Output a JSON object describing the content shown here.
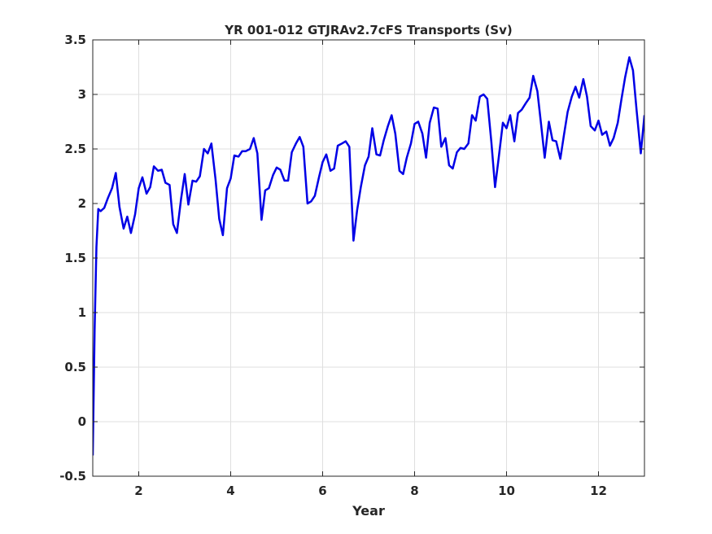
{
  "chart_data": {
    "type": "line",
    "title": "YR 001-012 GTJRAv2.7cFS Transports (Sv)",
    "xlabel": "Year",
    "ylabel": "",
    "xlim": [
      1.0,
      13.0
    ],
    "ylim": [
      -0.5,
      3.5
    ],
    "xticks": [
      2,
      4,
      6,
      8,
      10,
      12
    ],
    "xtick_labels": [
      "2",
      "4",
      "6",
      "8",
      "10",
      "12"
    ],
    "yticks": [
      -0.5,
      0,
      0.5,
      1,
      1.5,
      2,
      2.5,
      3,
      3.5
    ],
    "ytick_labels": [
      "-0.5",
      "0",
      "0.5",
      "1",
      "1.5",
      "2",
      "2.5",
      "3",
      "3.5"
    ],
    "grid": true,
    "line_color": "#0000e6",
    "series": [
      {
        "x": [
          1.0,
          1.04,
          1.08,
          1.12,
          1.17,
          1.25,
          1.33,
          1.42,
          1.5,
          1.58,
          1.67,
          1.75,
          1.83,
          1.92,
          2.0,
          2.08,
          2.17,
          2.25,
          2.33,
          2.42,
          2.5,
          2.58,
          2.67,
          2.75,
          2.83,
          2.92,
          3.0,
          3.08,
          3.17,
          3.25,
          3.33,
          3.42,
          3.5,
          3.58,
          3.67,
          3.75,
          3.83,
          3.92,
          4.0,
          4.08,
          4.17,
          4.25,
          4.33,
          4.42,
          4.5,
          4.58,
          4.67,
          4.75,
          4.83,
          4.92,
          5.0,
          5.08,
          5.17,
          5.25,
          5.33,
          5.42,
          5.5,
          5.58,
          5.67,
          5.75,
          5.83,
          5.92,
          6.0,
          6.08,
          6.17,
          6.25,
          6.33,
          6.42,
          6.5,
          6.58,
          6.67,
          6.75,
          6.83,
          6.92,
          7.0,
          7.08,
          7.17,
          7.25,
          7.33,
          7.42,
          7.5,
          7.58,
          7.67,
          7.75,
          7.83,
          7.92,
          8.0,
          8.08,
          8.17,
          8.25,
          8.33,
          8.42,
          8.5,
          8.58,
          8.67,
          8.75,
          8.83,
          8.92,
          9.0,
          9.08,
          9.17,
          9.25,
          9.33,
          9.42,
          9.5,
          9.58,
          9.67,
          9.75,
          9.83,
          9.92,
          10.0,
          10.08,
          10.17,
          10.25,
          10.33,
          10.42,
          10.5,
          10.58,
          10.67,
          10.75,
          10.83,
          10.92,
          11.0,
          11.08,
          11.17,
          11.25,
          11.33,
          11.42,
          11.5,
          11.58,
          11.67,
          11.75,
          11.83,
          11.92,
          12.0,
          12.08,
          12.17,
          12.25,
          12.33,
          12.42,
          12.5,
          12.58,
          12.67,
          12.75,
          12.83,
          12.92,
          13.0
        ],
        "values": [
          -0.31,
          0.85,
          1.6,
          1.95,
          1.93,
          1.96,
          2.05,
          2.14,
          2.28,
          1.97,
          1.77,
          1.88,
          1.73,
          1.9,
          2.14,
          2.24,
          2.09,
          2.15,
          2.34,
          2.3,
          2.31,
          2.19,
          2.17,
          1.81,
          1.73,
          2.04,
          2.27,
          1.99,
          2.21,
          2.2,
          2.25,
          2.5,
          2.46,
          2.55,
          2.22,
          1.86,
          1.71,
          2.14,
          2.23,
          2.44,
          2.43,
          2.48,
          2.48,
          2.5,
          2.6,
          2.46,
          1.85,
          2.12,
          2.14,
          2.26,
          2.33,
          2.31,
          2.21,
          2.21,
          2.47,
          2.55,
          2.61,
          2.52,
          2.0,
          2.02,
          2.07,
          2.24,
          2.38,
          2.45,
          2.3,
          2.32,
          2.53,
          2.55,
          2.57,
          2.52,
          1.66,
          1.94,
          2.15,
          2.35,
          2.43,
          2.69,
          2.45,
          2.44,
          2.58,
          2.71,
          2.81,
          2.64,
          2.3,
          2.27,
          2.42,
          2.55,
          2.73,
          2.75,
          2.64,
          2.42,
          2.74,
          2.88,
          2.87,
          2.52,
          2.6,
          2.35,
          2.32,
          2.47,
          2.51,
          2.5,
          2.55,
          2.81,
          2.76,
          2.98,
          3.0,
          2.96,
          2.56,
          2.15,
          2.42,
          2.74,
          2.69,
          2.81,
          2.57,
          2.83,
          2.86,
          2.92,
          2.97,
          3.17,
          3.03,
          2.73,
          2.42,
          2.75,
          2.58,
          2.57,
          2.41,
          2.63,
          2.84,
          2.98,
          3.07,
          2.97,
          3.14,
          2.98,
          2.71,
          2.67,
          2.76,
          2.63,
          2.66,
          2.53,
          2.6,
          2.74,
          2.96,
          3.16,
          3.34,
          3.22,
          2.85,
          2.46,
          2.81
        ]
      }
    ]
  }
}
